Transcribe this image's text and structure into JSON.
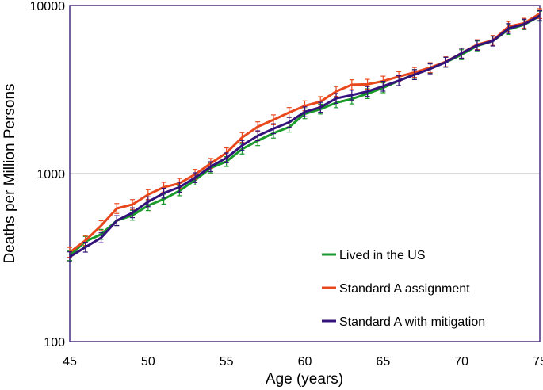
{
  "chart_data": {
    "type": "line",
    "title": "",
    "xlabel": "Age (years)",
    "ylabel": "Deaths per Million Persons",
    "xlim": [
      45,
      75
    ],
    "ylim": [
      100,
      10000
    ],
    "yscale": "log",
    "x_ticks": [
      "45",
      "50",
      "55",
      "60",
      "65",
      "70",
      "75"
    ],
    "y_ticks": [
      "100",
      "1000",
      "10000"
    ],
    "grid": "horizontal major",
    "legend_position": "bottom-right",
    "x": [
      45,
      46,
      47,
      48,
      49,
      50,
      51,
      52,
      53,
      54,
      55,
      56,
      57,
      58,
      59,
      60,
      61,
      62,
      63,
      64,
      65,
      66,
      67,
      68,
      69,
      70,
      71,
      72,
      73,
      74,
      75
    ],
    "series": [
      {
        "name": "Lived in the US",
        "color": "#1a9a2a",
        "values": [
          325,
          395,
          435,
          525,
          565,
          645,
          705,
          790,
          915,
          1080,
          1180,
          1400,
          1570,
          1740,
          1890,
          2270,
          2420,
          2640,
          2780,
          2990,
          3240,
          3570,
          3890,
          4230,
          4600,
          5100,
          5750,
          6150,
          7200,
          7700,
          8650
        ]
      },
      {
        "name": "Standard A assignment",
        "color": "#e8481c",
        "values": [
          340,
          400,
          490,
          620,
          655,
          750,
          830,
          875,
          990,
          1150,
          1330,
          1640,
          1900,
          2090,
          2310,
          2530,
          2680,
          3080,
          3380,
          3400,
          3550,
          3780,
          4000,
          4270,
          4630,
          5200,
          5850,
          6200,
          7500,
          7850,
          8950
        ]
      },
      {
        "name": "Standard A with mitigation",
        "color": "#33127a",
        "values": [
          320,
          365,
          415,
          525,
          585,
          680,
          765,
          830,
          945,
          1100,
          1240,
          1470,
          1680,
          1850,
          2020,
          2330,
          2480,
          2800,
          2930,
          3080,
          3310,
          3570,
          3880,
          4200,
          4600,
          5200,
          5800,
          6150,
          7300,
          7750,
          8700
        ]
      }
    ]
  }
}
